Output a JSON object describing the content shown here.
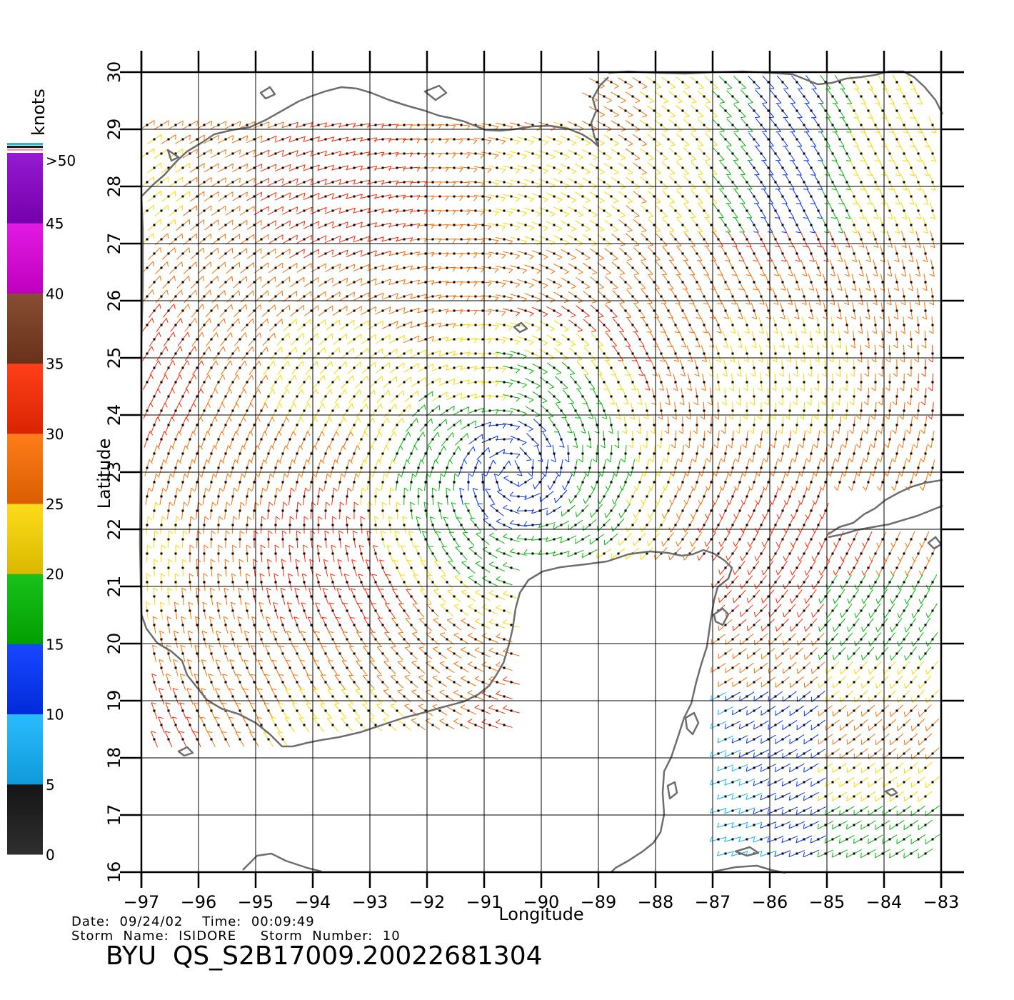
{
  "map": {
    "lon_range": [
      -97,
      -83
    ],
    "lat_range": [
      16,
      30
    ],
    "lon_ticks": [
      "-97",
      "-96",
      "-95",
      "-94",
      "-93",
      "-92",
      "-91",
      "-90",
      "-89",
      "-88",
      "-87",
      "-86",
      "-85",
      "-84",
      "-83"
    ],
    "lat_ticks": [
      "16",
      "17",
      "18",
      "19",
      "20",
      "21",
      "22",
      "23",
      "24",
      "25",
      "26",
      "27",
      "28",
      "29",
      "30"
    ],
    "xlabel": "Longitude",
    "ylabel": "Latitude",
    "grid": true,
    "coastline_color": "#6e6e6e",
    "layer": "wind barbs (QuikSCAT)"
  },
  "colorbar": {
    "unit": "knots",
    "labels": [
      "0",
      "5",
      "10",
      "15",
      "20",
      "25",
      "30",
      "35",
      "40",
      "45",
      ">50"
    ],
    "bands": [
      {
        "range": [
          0,
          5
        ],
        "color": "#555555"
      },
      {
        "range": [
          5,
          10
        ],
        "color": "#12b5ff"
      },
      {
        "range": [
          10,
          15
        ],
        "color": "#0033ff"
      },
      {
        "range": [
          15,
          20
        ],
        "color": "#00bb00"
      },
      {
        "range": [
          20,
          25
        ],
        "color": "#ffd800"
      },
      {
        "range": [
          25,
          30
        ],
        "color": "#ff6e00"
      },
      {
        "range": [
          30,
          35
        ],
        "color": "#ff2a00"
      },
      {
        "range": [
          35,
          40
        ],
        "color": "#7a3a1c"
      },
      {
        "range": [
          40,
          45
        ],
        "color": "#e000e0"
      },
      {
        "range": [
          45,
          50
        ],
        "color": "#8a00cc"
      }
    ]
  },
  "info": {
    "date_line": "Date:  09/24/02    Time:  00:09:49",
    "storm_line": "Storm  Name:  ISIDORE     Storm  Number:  10",
    "product_id": "BYU  QS_S2B17009.20022681304"
  }
}
